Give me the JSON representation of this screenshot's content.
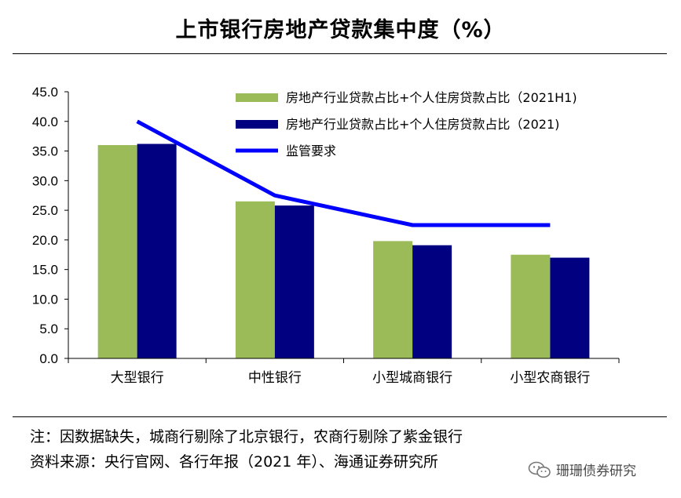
{
  "title": "上市银行房地产贷款集中度（%）",
  "chart_data": {
    "type": "bar",
    "categories": [
      "大型银行",
      "中性银行",
      "小型城商银行",
      "小型农商银行"
    ],
    "series": [
      {
        "name": "房地产行业贷款占比+个人住房贷款占比（2021H1)",
        "kind": "bar",
        "color": "#9bbb59",
        "values": [
          36.0,
          26.5,
          19.8,
          17.5
        ]
      },
      {
        "name": "房地产行业贷款占比+个人住房贷款占比（2021)",
        "kind": "bar",
        "color": "#000080",
        "values": [
          36.2,
          25.8,
          19.1,
          17.0
        ]
      },
      {
        "name": "监管要求",
        "kind": "line",
        "color": "#0000ff",
        "values": [
          40.0,
          27.5,
          22.5,
          22.5
        ]
      }
    ],
    "ylim": [
      0,
      45
    ],
    "yticks": [
      "0.0",
      "5.0",
      "10.0",
      "15.0",
      "20.0",
      "25.0",
      "30.0",
      "35.0",
      "40.0",
      "45.0"
    ],
    "xlabel": "",
    "ylabel": "",
    "legend": "top-right"
  },
  "notes": {
    "line1": "注：因数据缺失，城商行剔除了北京银行，农商行剔除了紫金银行",
    "line2": "资料来源：央行官网、各行年报（2021 年）、海通证券研究所"
  },
  "watermark": "珊珊债券研究"
}
